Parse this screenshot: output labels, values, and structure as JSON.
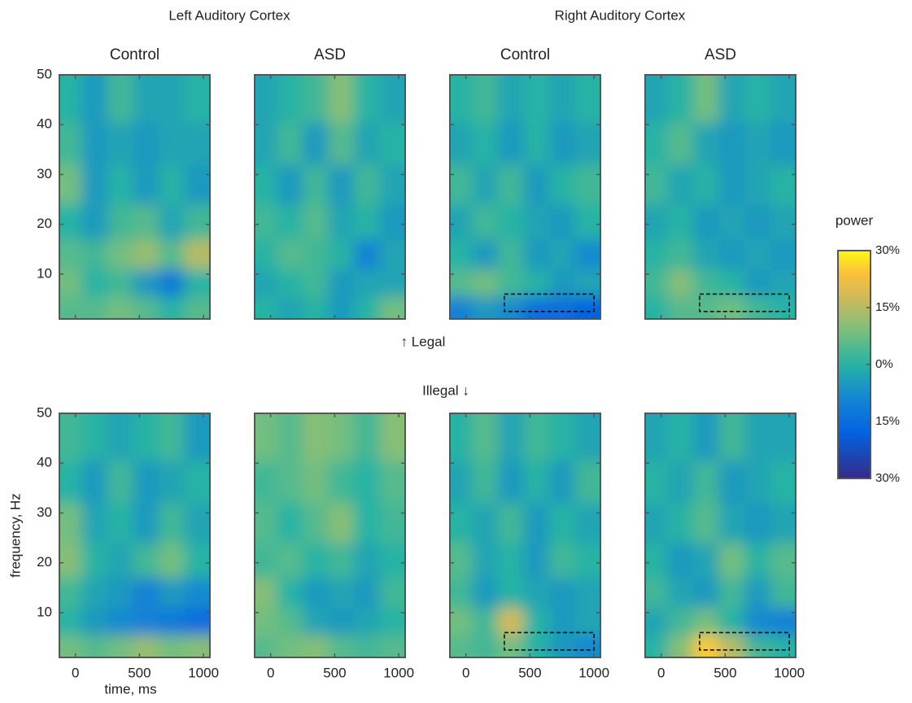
{
  "figure": {
    "groups": [
      "Left Auditory Cortex",
      "Right Auditory Cortex"
    ],
    "legal_label": "↑ Legal",
    "illegal_label": "Illegal ↓"
  },
  "chart_data": [
    {
      "type": "heatmap",
      "title": "Control",
      "x": [
        -50,
        150,
        350,
        550,
        750,
        950
      ],
      "y": [
        3,
        8,
        14,
        20,
        28,
        36,
        45
      ],
      "z": [
        [
          5,
          5,
          8,
          5,
          0,
          5
        ],
        [
          8,
          0,
          3,
          -5,
          -12,
          0
        ],
        [
          5,
          3,
          8,
          12,
          5,
          15
        ],
        [
          0,
          -5,
          3,
          5,
          -3,
          3
        ],
        [
          8,
          -5,
          0,
          -5,
          0,
          -5
        ],
        [
          3,
          -5,
          -3,
          -5,
          -3,
          -3
        ],
        [
          0,
          -5,
          3,
          -3,
          -3,
          0
        ]
      ],
      "xlim": [
        -125,
        1050
      ],
      "ylim": [
        1,
        50
      ],
      "xticks": [
        0,
        500,
        1000
      ],
      "yticks": [
        10,
        20,
        30,
        40,
        50
      ]
    },
    {
      "type": "heatmap",
      "title": "ASD",
      "x": [
        -50,
        150,
        350,
        550,
        750,
        950
      ],
      "y": [
        3,
        8,
        14,
        20,
        28,
        36,
        45
      ],
      "z": [
        [
          0,
          -3,
          0,
          -5,
          0,
          8
        ],
        [
          -3,
          0,
          3,
          -5,
          -3,
          -3
        ],
        [
          0,
          5,
          3,
          0,
          -10,
          -3
        ],
        [
          3,
          0,
          5,
          -3,
          0,
          -5
        ],
        [
          0,
          -5,
          3,
          -5,
          3,
          -3
        ],
        [
          -3,
          3,
          -5,
          5,
          -3,
          0
        ],
        [
          -3,
          0,
          3,
          10,
          0,
          -3
        ]
      ],
      "xlim": [
        -125,
        1050
      ],
      "ylim": [
        1,
        50
      ],
      "xticks": [
        0,
        500,
        1000
      ],
      "yticks": [
        10,
        20,
        30,
        40,
        50
      ]
    },
    {
      "type": "heatmap",
      "title": "Control",
      "x": [
        -50,
        150,
        350,
        550,
        750,
        950
      ],
      "y": [
        3,
        8,
        14,
        20,
        28,
        36,
        45
      ],
      "z": [
        [
          -10,
          -5,
          -8,
          -15,
          -15,
          -18
        ],
        [
          5,
          8,
          3,
          0,
          -5,
          -3
        ],
        [
          0,
          -5,
          3,
          -5,
          -3,
          -8
        ],
        [
          -3,
          3,
          0,
          -3,
          -5,
          0
        ],
        [
          3,
          -3,
          3,
          -5,
          0,
          3
        ],
        [
          -3,
          0,
          -5,
          0,
          -5,
          -3
        ],
        [
          0,
          3,
          -3,
          0,
          -3,
          0
        ]
      ],
      "xlim": [
        -125,
        1050
      ],
      "ylim": [
        1,
        50
      ],
      "xticks": [
        0,
        500,
        1000
      ],
      "yticks": [
        10,
        20,
        30,
        40,
        50
      ],
      "box": {
        "x": [
          300,
          1000
        ],
        "y": [
          2.5,
          6
        ]
      }
    },
    {
      "type": "heatmap",
      "title": "ASD",
      "x": [
        -50,
        150,
        350,
        550,
        750,
        950
      ],
      "y": [
        3,
        8,
        14,
        20,
        28,
        36,
        45
      ],
      "z": [
        [
          0,
          5,
          5,
          8,
          3,
          0
        ],
        [
          3,
          10,
          3,
          0,
          -5,
          -3
        ],
        [
          0,
          3,
          -3,
          -5,
          -3,
          -5
        ],
        [
          -3,
          0,
          -5,
          -3,
          -5,
          -3
        ],
        [
          3,
          -3,
          0,
          -5,
          -3,
          0
        ],
        [
          0,
          5,
          -3,
          -5,
          -3,
          -5
        ],
        [
          -3,
          0,
          8,
          -3,
          0,
          -3
        ]
      ],
      "xlim": [
        -125,
        1050
      ],
      "ylim": [
        1,
        50
      ],
      "xticks": [
        0,
        500,
        1000
      ],
      "yticks": [
        10,
        20,
        30,
        40,
        50
      ],
      "box": {
        "x": [
          300,
          1000
        ],
        "y": [
          2.5,
          6
        ]
      }
    },
    {
      "type": "heatmap",
      "x": [
        -50,
        150,
        350,
        550,
        750,
        950
      ],
      "y": [
        3,
        8,
        14,
        20,
        28,
        36,
        45
      ],
      "z": [
        [
          8,
          5,
          8,
          12,
          8,
          10
        ],
        [
          0,
          -5,
          -8,
          -10,
          -12,
          -15
        ],
        [
          3,
          -3,
          -5,
          -10,
          -5,
          -8
        ],
        [
          10,
          0,
          -3,
          3,
          8,
          0
        ],
        [
          8,
          -3,
          0,
          -5,
          3,
          -3
        ],
        [
          0,
          -5,
          3,
          -5,
          -3,
          0
        ],
        [
          3,
          0,
          -3,
          0,
          3,
          -5
        ]
      ],
      "xlim": [
        -125,
        1050
      ],
      "ylim": [
        1,
        50
      ],
      "xticks": [
        0,
        500,
        1000
      ],
      "yticks": [
        10,
        20,
        30,
        40,
        50
      ],
      "xlabel": "time, ms",
      "ylabel": "frequency, Hz"
    },
    {
      "type": "heatmap",
      "x": [
        -50,
        150,
        350,
        550,
        750,
        950
      ],
      "y": [
        3,
        8,
        14,
        20,
        28,
        36,
        45
      ],
      "z": [
        [
          5,
          8,
          10,
          5,
          3,
          5
        ],
        [
          8,
          5,
          -3,
          -5,
          -3,
          0
        ],
        [
          10,
          0,
          -5,
          -3,
          -5,
          3
        ],
        [
          3,
          5,
          0,
          3,
          -3,
          0
        ],
        [
          5,
          0,
          5,
          10,
          0,
          3
        ],
        [
          3,
          5,
          8,
          3,
          0,
          5
        ],
        [
          8,
          5,
          10,
          8,
          3,
          10
        ]
      ],
      "xlim": [
        -125,
        1050
      ],
      "ylim": [
        1,
        50
      ],
      "xticks": [
        0,
        500,
        1000
      ],
      "yticks": [
        10,
        20,
        30,
        40,
        50
      ]
    },
    {
      "type": "heatmap",
      "x": [
        -50,
        150,
        350,
        550,
        750,
        950
      ],
      "y": [
        3,
        8,
        14,
        20,
        28,
        36,
        45
      ],
      "z": [
        [
          5,
          3,
          8,
          0,
          -5,
          -8
        ],
        [
          8,
          3,
          18,
          0,
          -5,
          -3
        ],
        [
          3,
          -5,
          0,
          -3,
          -5,
          -3
        ],
        [
          5,
          -3,
          0,
          -5,
          3,
          0
        ],
        [
          0,
          -3,
          3,
          -5,
          0,
          -3
        ],
        [
          -3,
          3,
          -5,
          0,
          -5,
          3
        ],
        [
          0,
          5,
          -3,
          3,
          0,
          -3
        ]
      ],
      "xlim": [
        -125,
        1050
      ],
      "ylim": [
        1,
        50
      ],
      "xticks": [
        0,
        500,
        1000
      ],
      "yticks": [
        10,
        20,
        30,
        40,
        50
      ],
      "box": {
        "x": [
          300,
          1000
        ],
        "y": [
          2.5,
          6
        ]
      }
    },
    {
      "type": "heatmap",
      "x": [
        -50,
        150,
        350,
        550,
        750,
        950
      ],
      "y": [
        3,
        8,
        14,
        20,
        28,
        36,
        45
      ],
      "z": [
        [
          0,
          10,
          25,
          15,
          3,
          0
        ],
        [
          -3,
          3,
          8,
          0,
          -8,
          -10
        ],
        [
          3,
          -3,
          -5,
          3,
          -5,
          3
        ],
        [
          0,
          -5,
          -3,
          8,
          0,
          5
        ],
        [
          -3,
          0,
          5,
          -3,
          -5,
          -3
        ],
        [
          0,
          -3,
          3,
          -5,
          -3,
          0
        ],
        [
          -3,
          0,
          -5,
          3,
          -3,
          -3
        ]
      ],
      "xlim": [
        -125,
        1050
      ],
      "ylim": [
        1,
        50
      ],
      "xticks": [
        0,
        500,
        1000
      ],
      "yticks": [
        10,
        20,
        30,
        40,
        50
      ],
      "box": {
        "x": [
          300,
          1000
        ],
        "y": [
          2.5,
          6
        ]
      }
    },
    {
      "type": "colorbar",
      "title": "power",
      "ylim": [
        -30,
        30
      ],
      "yticks": [
        {
          "value": 30,
          "label": "30%"
        },
        {
          "value": 15,
          "label": "15%"
        },
        {
          "value": 0,
          "label": "0%"
        },
        {
          "value": -15,
          "label": "15%"
        },
        {
          "value": -30,
          "label": "30%"
        }
      ]
    }
  ]
}
